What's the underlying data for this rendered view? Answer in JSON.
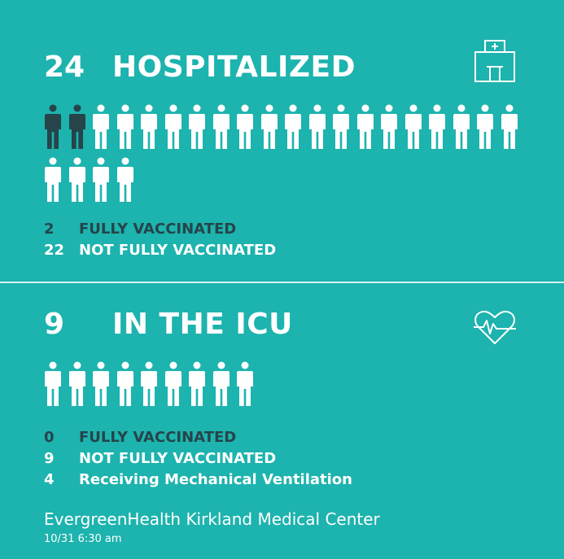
{
  "hospitalized": {
    "count": "24",
    "label": "HOSPITALIZED",
    "icon": "hospital-building-icon",
    "people_total": 24,
    "people_dark": 2,
    "stats": [
      {
        "num": "2",
        "label": "FULLY VACCINATED",
        "tone": "dark"
      },
      {
        "num": "22",
        "label": "NOT FULLY VACCINATED",
        "tone": "white"
      }
    ]
  },
  "icu": {
    "count": "9",
    "label": "IN THE ICU",
    "icon": "heartbeat-icon",
    "people_total": 9,
    "people_dark": 0,
    "stats": [
      {
        "num": "0",
        "label": "FULLY VACCINATED",
        "tone": "dark"
      },
      {
        "num": "9",
        "label": "NOT FULLY VACCINATED",
        "tone": "white"
      },
      {
        "num": "4",
        "label": "Receiving Mechanical Ventilation",
        "tone": "white"
      }
    ]
  },
  "footer": {
    "organization": "EvergreenHealth Kirkland Medical Center",
    "timestamp": "10/31 6:30 am"
  },
  "colors": {
    "background": "#1db3ae",
    "white": "#ffffff",
    "dark": "#26444a"
  }
}
